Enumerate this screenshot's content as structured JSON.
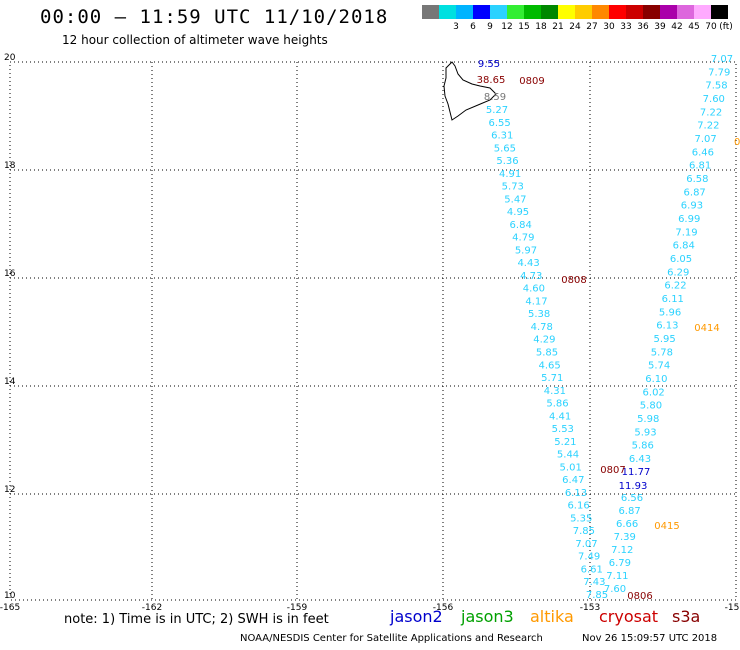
{
  "header": {
    "title": "00:00 – 11:59 UTC 11/10/2018",
    "subtitle": "12 hour collection of altimeter wave heights"
  },
  "scale": {
    "unit": "(ft)",
    "bins": [
      {
        "label": "",
        "color": "#777777"
      },
      {
        "label": "3",
        "color": "#00e0e0"
      },
      {
        "label": "6",
        "color": "#00b4ff"
      },
      {
        "label": "9",
        "color": "#0000ff"
      },
      {
        "label": "12",
        "color": "#2bd2ff"
      },
      {
        "label": "15",
        "color": "#33ee33"
      },
      {
        "label": "18",
        "color": "#00bb00"
      },
      {
        "label": "21",
        "color": "#008800"
      },
      {
        "label": "24",
        "color": "#ffff00"
      },
      {
        "label": "27",
        "color": "#ffcc00"
      },
      {
        "label": "30",
        "color": "#ff8800"
      },
      {
        "label": "33",
        "color": "#ff0000"
      },
      {
        "label": "36",
        "color": "#cc0000"
      },
      {
        "label": "39",
        "color": "#880000"
      },
      {
        "label": "42",
        "color": "#aa00aa"
      },
      {
        "label": "45",
        "color": "#dd66dd"
      },
      {
        "label": "70",
        "color": "#ffaaff"
      },
      {
        "label": "",
        "color": "#000000"
      }
    ]
  },
  "map": {
    "lat_ticks": [
      "20",
      "18",
      "16",
      "14",
      "12",
      "10"
    ],
    "lon_ticks": [
      "-165",
      "-162",
      "-159",
      "-156",
      "-153",
      "-15"
    ],
    "colors": {
      "wave": "#2bd2ff",
      "jason2": "#0000cc",
      "jason3": "#00a000",
      "altika": "#ff9900",
      "cryosat": "#cc0000",
      "s3a": "#880000",
      "gray": "#777777"
    },
    "track_west": {
      "values": [
        "5.27",
        "6.55",
        "6.31",
        "5.65",
        "5.36",
        "4.91",
        "5.73",
        "5.47",
        "4.95",
        "6.84",
        "4.79",
        "5.97",
        "4.43",
        "4.73",
        "4.60",
        "4.17",
        "5.38",
        "4.78",
        "4.29",
        "5.85",
        "4.65",
        "5.71",
        "4.31",
        "5.86",
        "4.41",
        "5.53",
        "5.21",
        "5.44",
        "5.01",
        "6.47",
        "6.13",
        "6.16",
        "5.35",
        "7.85",
        "7.07",
        "7.49",
        "6.61",
        "7.43",
        "7.85"
      ]
    },
    "track_east": {
      "values": [
        "7.07",
        "7.79",
        "7.58",
        "7.60",
        "7.22",
        "7.22",
        "7.07",
        "6.46",
        "6.81",
        "6.58",
        "6.87",
        "6.93",
        "6.99",
        "7.19",
        "6.84",
        "6.05",
        "6.29",
        "6.22",
        "6.11",
        "5.96",
        "6.13",
        "5.95",
        "5.78",
        "5.74",
        "6.10",
        "6.02",
        "5.80",
        "5.98",
        "5.93",
        "5.86",
        "6.43"
      ]
    },
    "track_east_lower": {
      "values": [
        "6.56",
        "6.87",
        "6.66",
        "7.39",
        "7.12",
        "6.79",
        "7.11",
        "7.60"
      ]
    },
    "special_values": [
      {
        "text": "9.55",
        "series": "jason2"
      },
      {
        "text": "38.65",
        "series": "s3a"
      },
      {
        "text": "8.59",
        "series": "gray"
      },
      {
        "text": "11.77",
        "series": "jason2"
      },
      {
        "text": "11.93",
        "series": "jason2"
      }
    ],
    "time_labels": [
      {
        "text": "0809",
        "series": "s3a"
      },
      {
        "text": "0808",
        "series": "s3a"
      },
      {
        "text": "0807",
        "series": "s3a"
      },
      {
        "text": "0806",
        "series": "s3a"
      },
      {
        "text": "0414",
        "series": "altika"
      },
      {
        "text": "0415",
        "series": "altika"
      },
      {
        "text": "0",
        "series": "altika"
      }
    ]
  },
  "footer": {
    "note": "note: 1) Time is in UTC; 2) SWH is in feet",
    "legend": [
      {
        "name": "jason2",
        "color": "#0000cc"
      },
      {
        "name": "jason3",
        "color": "#00a000"
      },
      {
        "name": "altika",
        "color": "#ff9900"
      },
      {
        "name": "cryosat",
        "color": "#cc0000"
      },
      {
        "name": "s3a",
        "color": "#880000"
      }
    ],
    "credit": "NOAA/NESDIS Center for Satellite Applications and Research",
    "timestamp": "Nov 26 15:09:57 UTC 2018"
  }
}
